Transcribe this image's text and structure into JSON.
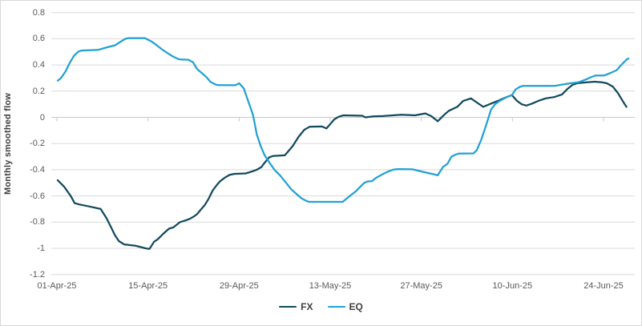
{
  "chart_data": {
    "type": "line",
    "title": "",
    "xlabel": "",
    "ylabel": "Monthly smoothed flow",
    "ylim": [
      -1.2,
      0.8
    ],
    "grid": "horizontal",
    "legend_position": "bottom-center",
    "y_tick_labels": [
      "0.8",
      "0.6",
      "0.4",
      "0.2",
      "0",
      "-0.2",
      "-0.4",
      "-0.6",
      "-0.8",
      "-1",
      "-1.2"
    ],
    "y_tick_values": [
      0.8,
      0.6,
      0.4,
      0.2,
      0,
      -0.2,
      -0.4,
      -0.6,
      -0.8,
      -1,
      -1.2
    ],
    "x_tick_labels": [
      "01-Apr-25",
      "15-Apr-25",
      "29-Apr-25",
      "13-May-25",
      "27-May-25",
      "10-Jun-25",
      "24-Jun-25"
    ],
    "x_tick_days": [
      0,
      14,
      28,
      42,
      56,
      70,
      84
    ],
    "colors": {
      "fx_line": "#124a5e",
      "eq_line": "#21a1d4",
      "gridline": "#d9d9d9",
      "zero_axis": "#c8c8c8",
      "tick_label": "#595959",
      "axis_title": "#3f3f3f",
      "legend_text": "#404040",
      "background": "#ffffff",
      "chart_border": "#d9d9d9"
    },
    "series": [
      {
        "name": "FX",
        "color": "#124a5e",
        "points": [
          [
            0,
            -0.48
          ],
          [
            1,
            -0.53
          ],
          [
            2,
            -0.6
          ],
          [
            2.6,
            -0.655
          ],
          [
            3.3,
            -0.665
          ],
          [
            4.8,
            -0.68
          ],
          [
            6.6,
            -0.7
          ],
          [
            7.5,
            -0.77
          ],
          [
            8.2,
            -0.84
          ],
          [
            8.8,
            -0.9
          ],
          [
            9.4,
            -0.945
          ],
          [
            10.2,
            -0.97
          ],
          [
            11.9,
            -0.98
          ],
          [
            13.5,
            -1.0
          ],
          [
            14.1,
            -1.005
          ],
          [
            14.8,
            -0.95
          ],
          [
            15.4,
            -0.93
          ],
          [
            16.2,
            -0.89
          ],
          [
            17.1,
            -0.85
          ],
          [
            17.8,
            -0.84
          ],
          [
            18.8,
            -0.8
          ],
          [
            19.6,
            -0.788
          ],
          [
            20.3,
            -0.775
          ],
          [
            20.9,
            -0.758
          ],
          [
            21.4,
            -0.74
          ],
          [
            21.9,
            -0.71
          ],
          [
            22.6,
            -0.67
          ],
          [
            23.2,
            -0.62
          ],
          [
            23.8,
            -0.56
          ],
          [
            24.4,
            -0.52
          ],
          [
            24.9,
            -0.49
          ],
          [
            25.7,
            -0.46
          ],
          [
            26.4,
            -0.44
          ],
          [
            27.1,
            -0.432
          ],
          [
            28.9,
            -0.428
          ],
          [
            29.9,
            -0.412
          ],
          [
            30.6,
            -0.4
          ],
          [
            31.3,
            -0.38
          ],
          [
            31.9,
            -0.34
          ],
          [
            32.5,
            -0.305
          ],
          [
            33.1,
            -0.295
          ],
          [
            34.9,
            -0.29
          ],
          [
            36.1,
            -0.22
          ],
          [
            37,
            -0.15
          ],
          [
            37.9,
            -0.095
          ],
          [
            38.7,
            -0.072
          ],
          [
            40.6,
            -0.07
          ],
          [
            41.3,
            -0.085
          ],
          [
            41.9,
            -0.05
          ],
          [
            42.5,
            -0.015
          ],
          [
            43.2,
            0.005
          ],
          [
            43.9,
            0.015
          ],
          [
            46.8,
            0.012
          ],
          [
            47.3,
            0.0
          ],
          [
            48.5,
            0.008
          ],
          [
            50,
            0.01
          ],
          [
            52.8,
            0.02
          ],
          [
            54.9,
            0.015
          ],
          [
            56.5,
            0.03
          ],
          [
            57.4,
            0.01
          ],
          [
            58.4,
            -0.03
          ],
          [
            59.4,
            0.02
          ],
          [
            60.1,
            0.05
          ],
          [
            61.4,
            0.08
          ],
          [
            62.3,
            0.125
          ],
          [
            63.5,
            0.145
          ],
          [
            64.5,
            0.11
          ],
          [
            65.4,
            0.08
          ],
          [
            66.6,
            0.105
          ],
          [
            67.6,
            0.125
          ],
          [
            68.5,
            0.145
          ],
          [
            69.8,
            0.17
          ],
          [
            70.6,
            0.125
          ],
          [
            71.3,
            0.1
          ],
          [
            72,
            0.09
          ],
          [
            72.9,
            0.105
          ],
          [
            73.8,
            0.125
          ],
          [
            75,
            0.145
          ],
          [
            76.3,
            0.155
          ],
          [
            77.5,
            0.175
          ],
          [
            78.3,
            0.215
          ],
          [
            79.1,
            0.248
          ],
          [
            79.8,
            0.26
          ],
          [
            80.9,
            0.266
          ],
          [
            82.5,
            0.272
          ],
          [
            83.6,
            0.268
          ],
          [
            84.4,
            0.26
          ],
          [
            85.3,
            0.235
          ],
          [
            86.1,
            0.185
          ],
          [
            87,
            0.11
          ],
          [
            87.4,
            0.08
          ]
        ]
      },
      {
        "name": "EQ",
        "color": "#21a1d4",
        "points": [
          [
            0,
            0.28
          ],
          [
            0.5,
            0.3
          ],
          [
            1.2,
            0.35
          ],
          [
            1.9,
            0.42
          ],
          [
            2.5,
            0.47
          ],
          [
            3.1,
            0.5
          ],
          [
            3.6,
            0.51
          ],
          [
            6.2,
            0.515
          ],
          [
            7.6,
            0.535
          ],
          [
            8.8,
            0.55
          ],
          [
            9.6,
            0.575
          ],
          [
            10.4,
            0.6
          ],
          [
            10.9,
            0.605
          ],
          [
            13.4,
            0.605
          ],
          [
            14.4,
            0.58
          ],
          [
            15.1,
            0.555
          ],
          [
            16,
            0.52
          ],
          [
            16.9,
            0.49
          ],
          [
            17.7,
            0.465
          ],
          [
            18.3,
            0.45
          ],
          [
            18.7,
            0.443
          ],
          [
            20.1,
            0.44
          ],
          [
            20.8,
            0.42
          ],
          [
            21.4,
            0.37
          ],
          [
            22.1,
            0.34
          ],
          [
            22.8,
            0.31
          ],
          [
            23.5,
            0.27
          ],
          [
            24.3,
            0.25
          ],
          [
            24.7,
            0.246
          ],
          [
            27.3,
            0.245
          ],
          [
            27.9,
            0.26
          ],
          [
            28.6,
            0.22
          ],
          [
            29.3,
            0.12
          ],
          [
            30,
            0.02
          ],
          [
            30.6,
            -0.13
          ],
          [
            31.2,
            -0.22
          ],
          [
            31.8,
            -0.29
          ],
          [
            32.6,
            -0.35
          ],
          [
            33.3,
            -0.4
          ],
          [
            34.2,
            -0.445
          ],
          [
            35.1,
            -0.5
          ],
          [
            35.9,
            -0.55
          ],
          [
            36.8,
            -0.59
          ],
          [
            37.5,
            -0.62
          ],
          [
            38.3,
            -0.64
          ],
          [
            38.6,
            -0.645
          ],
          [
            43.8,
            -0.645
          ],
          [
            44.9,
            -0.6
          ],
          [
            45.8,
            -0.565
          ],
          [
            46.5,
            -0.53
          ],
          [
            47.1,
            -0.5
          ],
          [
            47.6,
            -0.49
          ],
          [
            48.3,
            -0.487
          ],
          [
            49,
            -0.46
          ],
          [
            49.9,
            -0.435
          ],
          [
            50.7,
            -0.415
          ],
          [
            51.5,
            -0.4
          ],
          [
            52.2,
            -0.395
          ],
          [
            54.5,
            -0.397
          ],
          [
            55.6,
            -0.41
          ],
          [
            56.9,
            -0.425
          ],
          [
            57.8,
            -0.435
          ],
          [
            58.4,
            -0.443
          ],
          [
            59.2,
            -0.38
          ],
          [
            59.9,
            -0.355
          ],
          [
            60.5,
            -0.3
          ],
          [
            61.1,
            -0.285
          ],
          [
            61.6,
            -0.277
          ],
          [
            63.9,
            -0.275
          ],
          [
            64.4,
            -0.25
          ],
          [
            65.1,
            -0.17
          ],
          [
            65.9,
            -0.05
          ],
          [
            66.6,
            0.06
          ],
          [
            67.2,
            0.1
          ],
          [
            67.9,
            0.125
          ],
          [
            68.8,
            0.15
          ],
          [
            69.8,
            0.17
          ],
          [
            70.4,
            0.215
          ],
          [
            71.1,
            0.235
          ],
          [
            71.5,
            0.24
          ],
          [
            76.3,
            0.24
          ],
          [
            77.5,
            0.25
          ],
          [
            78.7,
            0.26
          ],
          [
            80,
            0.267
          ],
          [
            81.2,
            0.29
          ],
          [
            82.1,
            0.31
          ],
          [
            82.7,
            0.32
          ],
          [
            84,
            0.32
          ],
          [
            85,
            0.34
          ],
          [
            85.9,
            0.36
          ],
          [
            86.6,
            0.4
          ],
          [
            87.4,
            0.44
          ],
          [
            87.7,
            0.45
          ]
        ]
      }
    ]
  }
}
